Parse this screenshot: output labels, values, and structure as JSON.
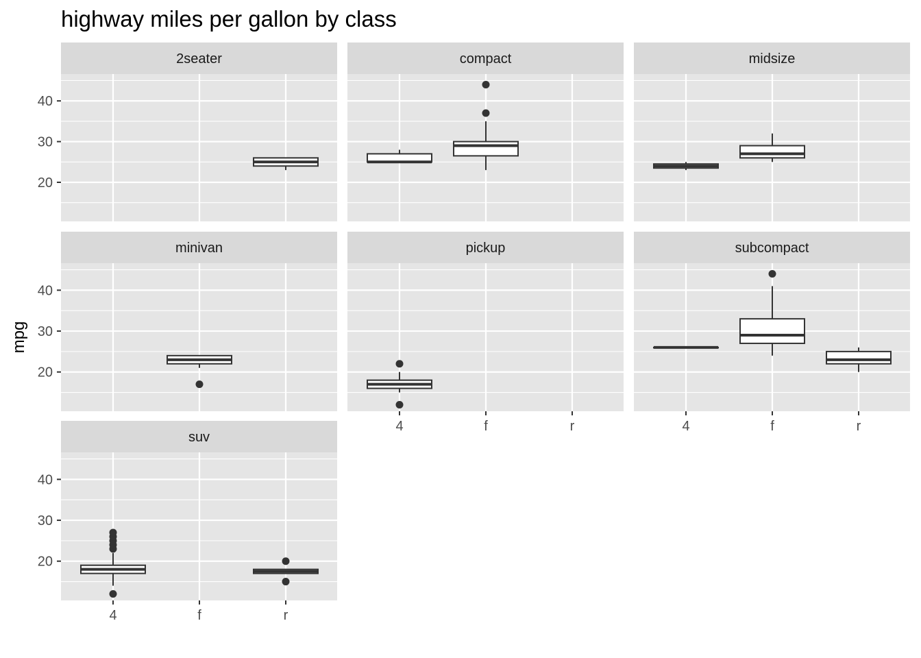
{
  "chart_data": {
    "type": "boxplot",
    "title": "highway miles per gallon by class",
    "xlabel": "",
    "ylabel": "mpg",
    "x_categories": [
      "4",
      "f",
      "r"
    ],
    "y_ticks": [
      20,
      30,
      40
    ],
    "ylim": [
      10.4,
      46.6
    ],
    "grid": true,
    "colors": {
      "panel_background": "#e5e5e5",
      "strip_background": "#d9d9d9",
      "grid": "#ffffff",
      "box_fill": "#ffffff",
      "box_line": "#333333",
      "outlier": "#333333",
      "tick": "#333333",
      "tick_label": "#4d4d4d"
    },
    "facets": [
      {
        "name": "2seater",
        "boxes": [
          {
            "x": "r",
            "lower_whisker": 23,
            "q1": 24,
            "median": 25,
            "q3": 26,
            "upper_whisker": 26,
            "outliers": []
          }
        ]
      },
      {
        "name": "compact",
        "boxes": [
          {
            "x": "4",
            "lower_whisker": 25,
            "q1": 25,
            "median": 25,
            "q3": 27,
            "upper_whisker": 28,
            "outliers": []
          },
          {
            "x": "f",
            "lower_whisker": 23,
            "q1": 26.5,
            "median": 29,
            "q3": 30,
            "upper_whisker": 35,
            "outliers": [
              37,
              44
            ]
          }
        ]
      },
      {
        "name": "midsize",
        "boxes": [
          {
            "x": "4",
            "lower_whisker": 23,
            "q1": 23.5,
            "median": 24,
            "q3": 24.5,
            "upper_whisker": 25,
            "outliers": []
          },
          {
            "x": "f",
            "lower_whisker": 25,
            "q1": 26,
            "median": 27,
            "q3": 29,
            "upper_whisker": 32,
            "outliers": []
          }
        ]
      },
      {
        "name": "minivan",
        "boxes": [
          {
            "x": "f",
            "lower_whisker": 21,
            "q1": 22,
            "median": 23,
            "q3": 24,
            "upper_whisker": 24,
            "outliers": [
              17
            ]
          }
        ]
      },
      {
        "name": "pickup",
        "boxes": [
          {
            "x": "4",
            "lower_whisker": 15,
            "q1": 16,
            "median": 17,
            "q3": 18,
            "upper_whisker": 20,
            "outliers": [
              12,
              22
            ]
          }
        ]
      },
      {
        "name": "subcompact",
        "boxes": [
          {
            "x": "4",
            "lower_whisker": 26,
            "q1": 26,
            "median": 26,
            "q3": 26,
            "upper_whisker": 26,
            "outliers": []
          },
          {
            "x": "f",
            "lower_whisker": 24,
            "q1": 27,
            "median": 29,
            "q3": 33,
            "upper_whisker": 41,
            "outliers": [
              44
            ]
          },
          {
            "x": "r",
            "lower_whisker": 20,
            "q1": 22,
            "median": 23,
            "q3": 25,
            "upper_whisker": 26,
            "outliers": []
          }
        ]
      },
      {
        "name": "suv",
        "boxes": [
          {
            "x": "4",
            "lower_whisker": 14,
            "q1": 17,
            "median": 18,
            "q3": 19,
            "upper_whisker": 22,
            "outliers": [
              12,
              23,
              24,
              25,
              26,
              27
            ]
          },
          {
            "x": "r",
            "lower_whisker": 17,
            "q1": 17,
            "median": 17.5,
            "q3": 18,
            "upper_whisker": 18,
            "outliers": [
              15,
              20
            ]
          }
        ]
      }
    ]
  }
}
